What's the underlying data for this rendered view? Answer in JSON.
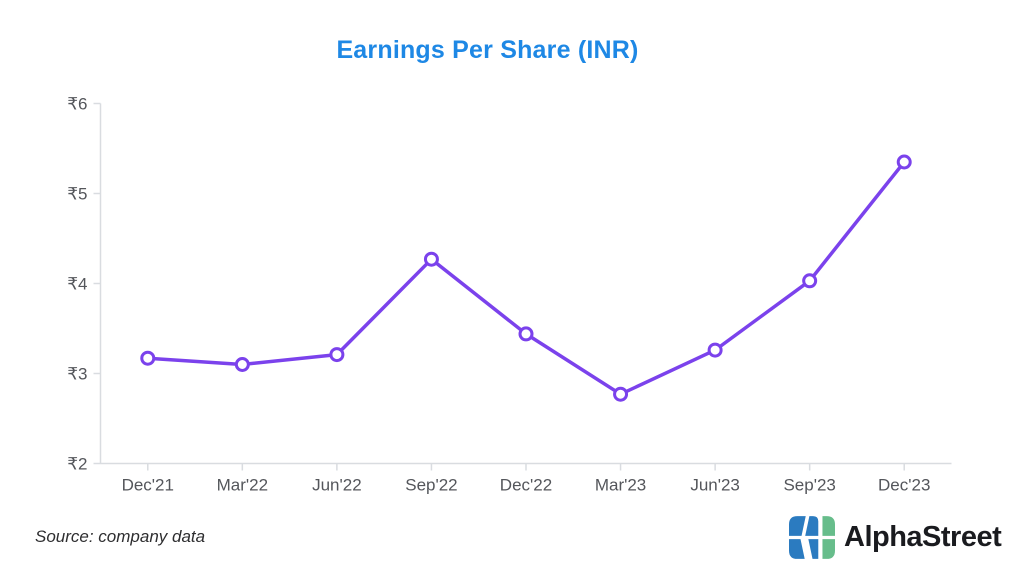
{
  "title": "Earnings Per Share (INR)",
  "source_note": "Source: company data",
  "branding": {
    "logo_text": "AlphaStreet"
  },
  "colors": {
    "title": "#1E88E5",
    "line": "#7B42EC",
    "marker_fill": "#FFFFFF",
    "axis_line": "#D9DCE0",
    "tick_label": "#54565B",
    "source_text": "#2E2E30",
    "brand_text": "#1A1B1F",
    "logo_blue": "#2B7BC0",
    "logo_green": "#67BD8B"
  },
  "chart_data": {
    "type": "line",
    "title": "Earnings Per Share (INR)",
    "categories": [
      "Dec'21",
      "Mar'22",
      "Jun'22",
      "Sep'22",
      "Dec'22",
      "Mar'23",
      "Jun'23",
      "Sep'23",
      "Dec'23"
    ],
    "series": [
      {
        "name": "Earnings Per Share (INR)",
        "values": [
          3.17,
          3.1,
          3.21,
          4.27,
          3.44,
          2.77,
          3.26,
          4.03,
          5.35
        ]
      }
    ],
    "xlabel": "",
    "ylabel": "",
    "ylim": [
      2,
      6
    ],
    "ytick_values": [
      2,
      3,
      4,
      5,
      6
    ],
    "ytick_labels": [
      "₹2",
      "₹3",
      "₹4",
      "₹5",
      "₹6"
    ],
    "currency_symbol": "₹",
    "grid": false,
    "legend_position": "none",
    "marker": "open-circle"
  }
}
